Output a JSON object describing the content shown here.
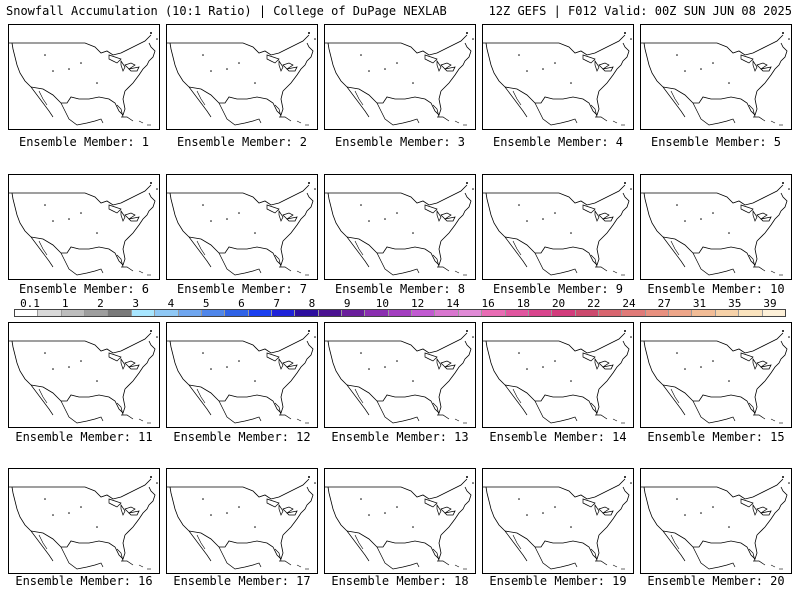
{
  "header": {
    "left_title": "Snowfall Accumulation (10:1 Ratio) | College of DuPage NEXLAB",
    "right_title": "12Z GEFS | F012 Valid: 00Z SUN JUN 08 2025"
  },
  "member_label_prefix": "Ensemble Member:",
  "members": [
    "1",
    "2",
    "3",
    "4",
    "5",
    "6",
    "7",
    "8",
    "9",
    "10",
    "11",
    "12",
    "13",
    "14",
    "15",
    "16",
    "17",
    "18",
    "19",
    "20"
  ],
  "legend": {
    "labels": [
      "0.1",
      "1",
      "2",
      "3",
      "4",
      "5",
      "6",
      "7",
      "8",
      "9",
      "10",
      "12",
      "14",
      "16",
      "18",
      "20",
      "22",
      "24",
      "27",
      "31",
      "35",
      "39"
    ],
    "colors": [
      "#ffffff",
      "#d9d9d9",
      "#bdbdbd",
      "#9e9e9e",
      "#7a7a7a",
      "#a8e6ff",
      "#8fc8f5",
      "#6fa6ef",
      "#4f86ea",
      "#2f62e6",
      "#1a3ff0",
      "#1e22d8",
      "#2d0e9e",
      "#4b1291",
      "#6a1e9c",
      "#8a2eb0",
      "#a33ec0",
      "#c15ad1",
      "#d876cf",
      "#e08ad6",
      "#e86cb4",
      "#e0559f",
      "#d8448d",
      "#d23c7c",
      "#cc4a6e",
      "#d8656f",
      "#e07a78",
      "#e8907f",
      "#eea689",
      "#f2bc96",
      "#f6d1a8",
      "#fae3be",
      "#fdf0d8"
    ]
  }
}
